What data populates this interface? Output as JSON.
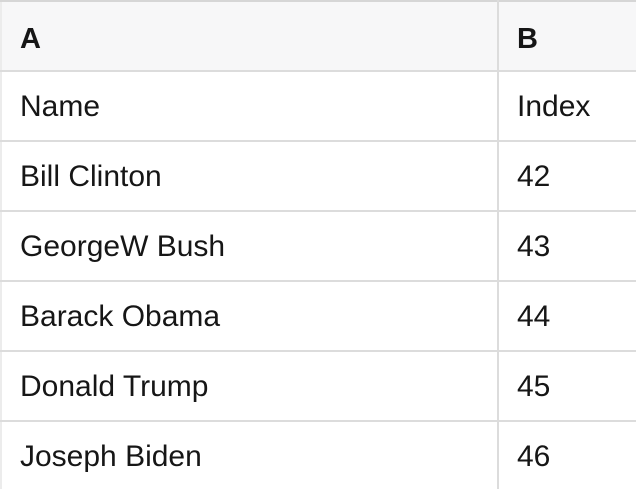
{
  "table": {
    "columns": [
      {
        "key": "A",
        "label": "A"
      },
      {
        "key": "B",
        "label": "B"
      }
    ],
    "header_row": {
      "name_label": "Name",
      "index_label": "Index"
    },
    "rows": [
      [
        "Name",
        "Index"
      ],
      [
        "Bill Clinton",
        "42"
      ],
      [
        "GeorgeW Bush",
        "43"
      ],
      [
        "Barack Obama",
        "44"
      ],
      [
        "Donald Trump",
        "45"
      ],
      [
        "Joseph Biden",
        "46"
      ]
    ]
  },
  "colors": {
    "header_bg": "#f7f7f8",
    "border": "#dcdcdc",
    "border_top": "#d6d6d6",
    "border_left": "#ececec",
    "text": "#161616"
  }
}
